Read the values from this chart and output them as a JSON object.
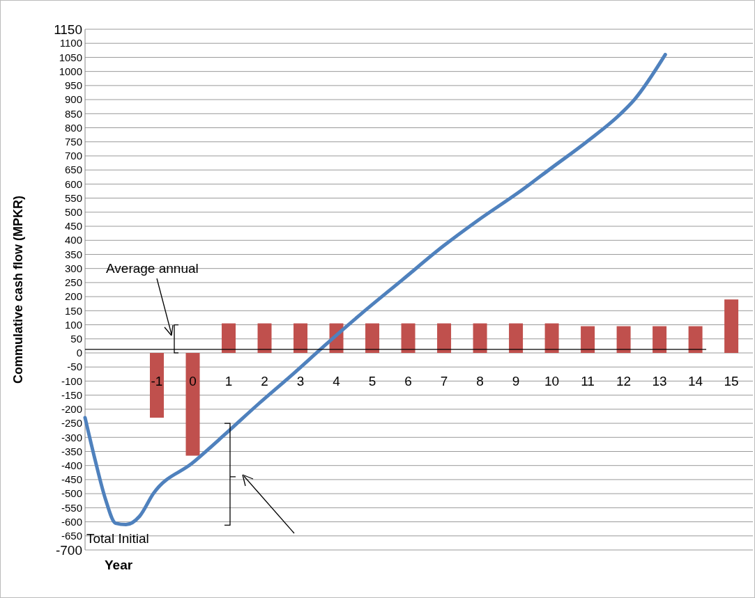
{
  "chart_data": {
    "type": "bar",
    "ylabel": "Commulative cash flow (MPKR)",
    "xlabel": "Year",
    "annotations": [
      "Average annual",
      "Total Initial"
    ],
    "x": [
      -1,
      0,
      1,
      2,
      3,
      4,
      5,
      6,
      7,
      8,
      9,
      10,
      11,
      12,
      13,
      14,
      15
    ],
    "xlim": [
      -3,
      15.6
    ],
    "xticks": [
      -1,
      0,
      1,
      2,
      3,
      4,
      5,
      6,
      7,
      8,
      9,
      10,
      11,
      12,
      13,
      14,
      15
    ],
    "ylim": [
      -700,
      1150
    ],
    "yticks": [
      -700,
      -650,
      -600,
      -550,
      -500,
      -450,
      -400,
      -350,
      -300,
      -250,
      -200,
      -150,
      -100,
      -50,
      0,
      50,
      100,
      150,
      200,
      250,
      300,
      350,
      400,
      450,
      500,
      550,
      600,
      650,
      700,
      750,
      800,
      850,
      900,
      950,
      1000,
      1050,
      1100,
      1150
    ],
    "grid": "y",
    "marker": "none",
    "series": [
      {
        "color": "#c0504d",
        "values": [
          -230,
          -365,
          105,
          105,
          105,
          105,
          105,
          105,
          105,
          105,
          105,
          105,
          95,
          95,
          95,
          95,
          190
        ]
      },
      {
        "type": "line",
        "color": "#4f81bd",
        "x": [
          -3,
          -2.72,
          -2.43,
          -2.15,
          -1.86,
          -1.48,
          -1.1,
          0,
          0.89,
          1.84,
          2.79,
          3.75,
          4.7,
          5.84,
          6.98,
          7.93,
          9.07,
          10.02,
          10.97,
          11.92,
          12.3,
          13.16
        ],
        "values": [
          -230,
          -380,
          -520,
          -605,
          -610,
          -580,
          -500,
          -390,
          -290,
          -180,
          -75,
          35,
          140,
          260,
          380,
          470,
          570,
          660,
          750,
          850,
          900,
          1060
        ]
      }
    ]
  }
}
